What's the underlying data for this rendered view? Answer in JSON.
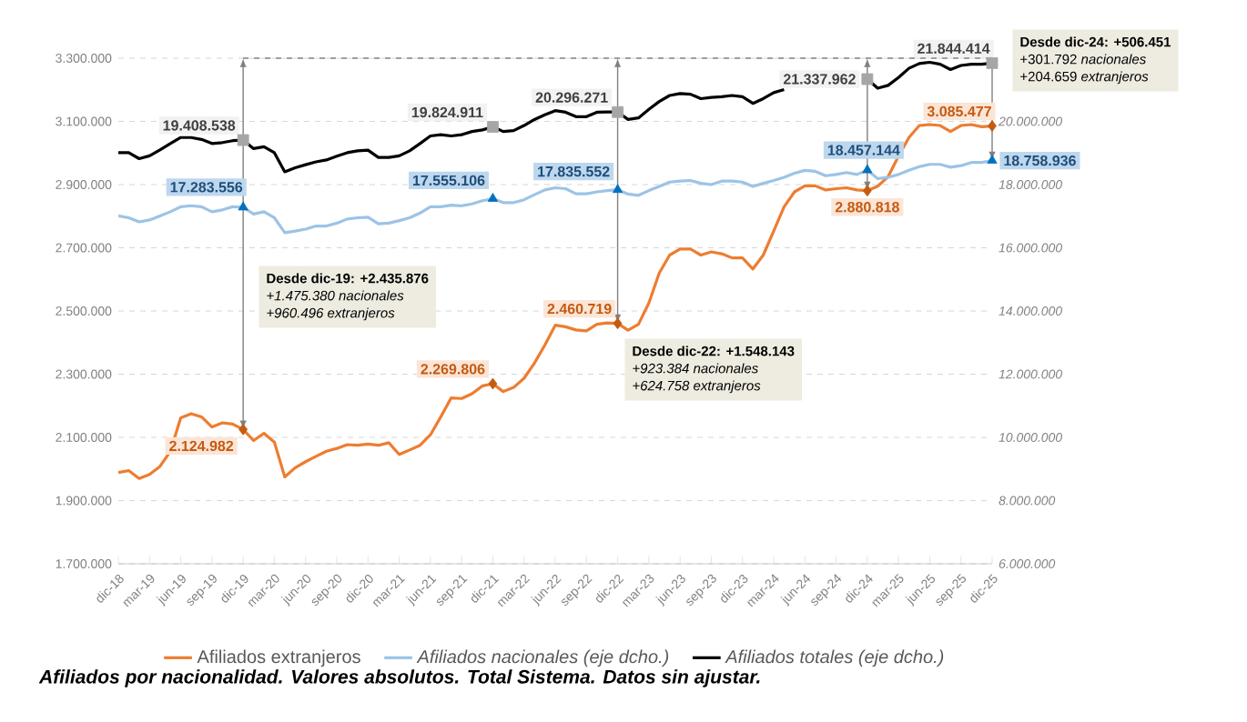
{
  "chart_data": {
    "type": "line",
    "title": "Afiliados por nacionalidad. Valores absolutos. Total Sistema. Datos sin ajustar.",
    "categories": [
      "dic-18",
      null,
      null,
      "mar-19",
      null,
      null,
      "jun-19",
      null,
      null,
      "sep-19",
      null,
      null,
      "dic-19",
      null,
      null,
      "mar-20",
      null,
      null,
      "jun-20",
      null,
      null,
      "sep-20",
      null,
      null,
      "dic-20",
      null,
      null,
      "mar-21",
      null,
      null,
      "jun-21",
      null,
      null,
      "sep-21",
      null,
      null,
      "dic-21",
      null,
      null,
      "mar-22",
      null,
      null,
      "jun-22",
      null,
      null,
      "sep-22",
      null,
      null,
      "dic-22",
      null,
      null,
      "mar-23",
      null,
      null,
      "jun-23",
      null,
      null,
      "sep-23",
      null,
      null,
      "dic-23",
      null,
      null,
      "mar-24",
      null,
      null,
      "jun-24",
      null,
      null,
      "sep-24",
      null,
      null,
      "dic-24",
      null,
      null,
      "mar-25",
      null,
      null,
      "jun-25",
      null,
      null,
      "sep-25",
      null,
      null,
      "dic-25"
    ],
    "series": [
      {
        "name": "Afiliados extranjeros",
        "color": "#ed7d31",
        "values": [
          1989000,
          1995000,
          1970000,
          1983000,
          2008000,
          2056000,
          2162000,
          2175000,
          2165000,
          2133000,
          2146000,
          2142000,
          2124982,
          2090000,
          2113000,
          2085000,
          1975000,
          2004000,
          2023000,
          2040000,
          2056000,
          2065000,
          2077000,
          2075000,
          2079000,
          2075000,
          2083000,
          2046000,
          2060000,
          2075000,
          2108000,
          2165000,
          2225000,
          2223000,
          2238000,
          2263000,
          2269806,
          2245000,
          2258000,
          2287000,
          2335000,
          2392000,
          2455000,
          2450000,
          2440000,
          2437000,
          2458000,
          2462000,
          2460719,
          2439000,
          2458000,
          2525000,
          2620000,
          2677000,
          2696000,
          2696000,
          2677000,
          2687000,
          2681000,
          2668000,
          2668000,
          2633000,
          2677000,
          2753000,
          2830000,
          2877000,
          2896000,
          2896000,
          2883000,
          2887000,
          2890000,
          2883000,
          2880818,
          2895000,
          2925000,
          2990000,
          3049000,
          3087000,
          3090000,
          3087000,
          3068000,
          3087000,
          3090000,
          3083000,
          3085477
        ],
        "value_labels": [
          null,
          null,
          null,
          null,
          null,
          null,
          null,
          null,
          null,
          null,
          null,
          null,
          "2.124.982",
          null,
          null,
          null,
          null,
          null,
          null,
          null,
          null,
          null,
          null,
          null,
          null,
          null,
          null,
          null,
          null,
          null,
          null,
          null,
          null,
          null,
          null,
          null,
          "2.269.806",
          null,
          null,
          null,
          null,
          null,
          null,
          null,
          null,
          null,
          null,
          null,
          "2.460.719",
          null,
          null,
          null,
          null,
          null,
          null,
          null,
          null,
          null,
          null,
          null,
          null,
          null,
          null,
          null,
          null,
          null,
          null,
          null,
          null,
          null,
          null,
          null,
          "2.880.818",
          null,
          null,
          null,
          null,
          null,
          null,
          null,
          null,
          null,
          null,
          null,
          "3.085.477"
        ]
      },
      {
        "name": "Afiliados nacionales (eje dcho.)",
        "color": "#9dc3e6",
        "axis": "y2",
        "values": [
          17010000,
          16950000,
          16820000,
          16880000,
          17010000,
          17140000,
          17300000,
          17330000,
          17300000,
          17140000,
          17200000,
          17300000,
          17283556,
          17070000,
          17140000,
          16950000,
          16480000,
          16530000,
          16590000,
          16690000,
          16690000,
          16780000,
          16910000,
          16950000,
          16970000,
          16760000,
          16780000,
          16860000,
          16950000,
          17100000,
          17300000,
          17300000,
          17350000,
          17330000,
          17390000,
          17490000,
          17555106,
          17430000,
          17430000,
          17520000,
          17680000,
          17830000,
          17900000,
          17870000,
          17710000,
          17710000,
          17770000,
          17810000,
          17835552,
          17700000,
          17660000,
          17810000,
          17940000,
          18080000,
          18110000,
          18130000,
          18040000,
          18000000,
          18110000,
          18110000,
          18080000,
          17940000,
          18040000,
          18130000,
          18230000,
          18360000,
          18450000,
          18420000,
          18280000,
          18320000,
          18380000,
          18320000,
          18457144,
          18190000,
          18230000,
          18320000,
          18450000,
          18570000,
          18640000,
          18640000,
          18550000,
          18600000,
          18700000,
          18700000,
          18758936
        ],
        "value_labels": [
          null,
          null,
          null,
          null,
          null,
          null,
          null,
          null,
          null,
          null,
          null,
          null,
          "17.283.556",
          null,
          null,
          null,
          null,
          null,
          null,
          null,
          null,
          null,
          null,
          null,
          null,
          null,
          null,
          null,
          null,
          null,
          null,
          null,
          null,
          null,
          null,
          null,
          "17.555.106",
          null,
          null,
          null,
          null,
          null,
          null,
          null,
          null,
          null,
          null,
          null,
          "17.835.552",
          null,
          null,
          null,
          null,
          null,
          null,
          null,
          null,
          null,
          null,
          null,
          null,
          null,
          null,
          null,
          null,
          null,
          null,
          null,
          null,
          null,
          null,
          null,
          "18.457.144",
          null,
          null,
          null,
          null,
          null,
          null,
          null,
          null,
          null,
          null,
          null,
          "18.758.936"
        ]
      },
      {
        "name": "Afiliados totales (eje dcho.)",
        "color": "#000000",
        "axis": "y2",
        "values": [
          19010000,
          19010000,
          18820000,
          18910000,
          19100000,
          19300000,
          19490000,
          19490000,
          19430000,
          19300000,
          19330000,
          19390000,
          19408538,
          19140000,
          19200000,
          19010000,
          18400000,
          18530000,
          18630000,
          18720000,
          18780000,
          18900000,
          19010000,
          19070000,
          19090000,
          18860000,
          18860000,
          18910000,
          19070000,
          19300000,
          19540000,
          19580000,
          19540000,
          19580000,
          19680000,
          19730000,
          19824911,
          19680000,
          19710000,
          19870000,
          20060000,
          20210000,
          20340000,
          20290000,
          20150000,
          20150000,
          20290000,
          20300000,
          20296271,
          20060000,
          20110000,
          20380000,
          20630000,
          20820000,
          20880000,
          20860000,
          20720000,
          20760000,
          20780000,
          20820000,
          20780000,
          20570000,
          20720000,
          20910000,
          21010000,
          null,
          null,
          null,
          null,
          null,
          null,
          null,
          21337962,
          21050000,
          21140000,
          21390000,
          21680000,
          21830000,
          21870000,
          21810000,
          21640000,
          21770000,
          21810000,
          21810000,
          21844414
        ],
        "value_labels": [
          null,
          null,
          null,
          null,
          null,
          null,
          null,
          null,
          null,
          null,
          null,
          null,
          "19.408.538",
          null,
          null,
          null,
          null,
          null,
          null,
          null,
          null,
          null,
          null,
          null,
          null,
          null,
          null,
          null,
          null,
          null,
          null,
          null,
          null,
          null,
          null,
          null,
          "19.824.911",
          null,
          null,
          null,
          null,
          null,
          null,
          null,
          null,
          null,
          null,
          null,
          "20.296.271",
          null,
          null,
          null,
          null,
          null,
          null,
          null,
          null,
          null,
          null,
          null,
          null,
          null,
          null,
          null,
          null,
          null,
          null,
          null,
          null,
          null,
          null,
          null,
          "21.337.962",
          null,
          null,
          null,
          null,
          null,
          null,
          null,
          null,
          null,
          null,
          null,
          "21.844.414"
        ]
      }
    ],
    "ylim": [
      1700000,
      3300000
    ],
    "yticks": [
      {
        "value": 1700000,
        "label": "1.700.000"
      },
      {
        "value": 1900000,
        "label": "1.900.000"
      },
      {
        "value": 2100000,
        "label": "2.100.000"
      },
      {
        "value": 2300000,
        "label": "2.300.000"
      },
      {
        "value": 2500000,
        "label": "2.500.000"
      },
      {
        "value": 2700000,
        "label": "2.700.000"
      },
      {
        "value": 2900000,
        "label": "2.900.000"
      },
      {
        "value": 3100000,
        "label": "3.100.000"
      },
      {
        "value": 3300000,
        "label": "3.300.000"
      }
    ],
    "y2lim": [
      6000000,
      22000000
    ],
    "y2ticks": [
      {
        "value": 6000000,
        "label": "6.000.000"
      },
      {
        "value": 8000000,
        "label": "8.000.000"
      },
      {
        "value": 10000000,
        "label": "10.000.000"
      },
      {
        "value": 12000000,
        "label": "12.000.000"
      },
      {
        "value": 14000000,
        "label": "14.000.000"
      },
      {
        "value": 16000000,
        "label": "16.000.000"
      },
      {
        "value": 18000000,
        "label": "18.000.000"
      },
      {
        "value": 20000000,
        "label": "20.000.000"
      },
      {
        "value": 22000000,
        "label": null
      }
    ],
    "annotations": [
      "Desde dic-19: +2.435.876",
      "+1.475.380 nacionales",
      "+960.496 extranjeros",
      "Desde dic-22: +1.548.143",
      "+923.384 nacionales",
      "+624.758 extranjeros",
      "Desde dic-24: +506.451",
      "+301.792 *nacionales*",
      "+204.659 *extranjeros*"
    ],
    "grid": "y",
    "legend": "bottom"
  }
}
